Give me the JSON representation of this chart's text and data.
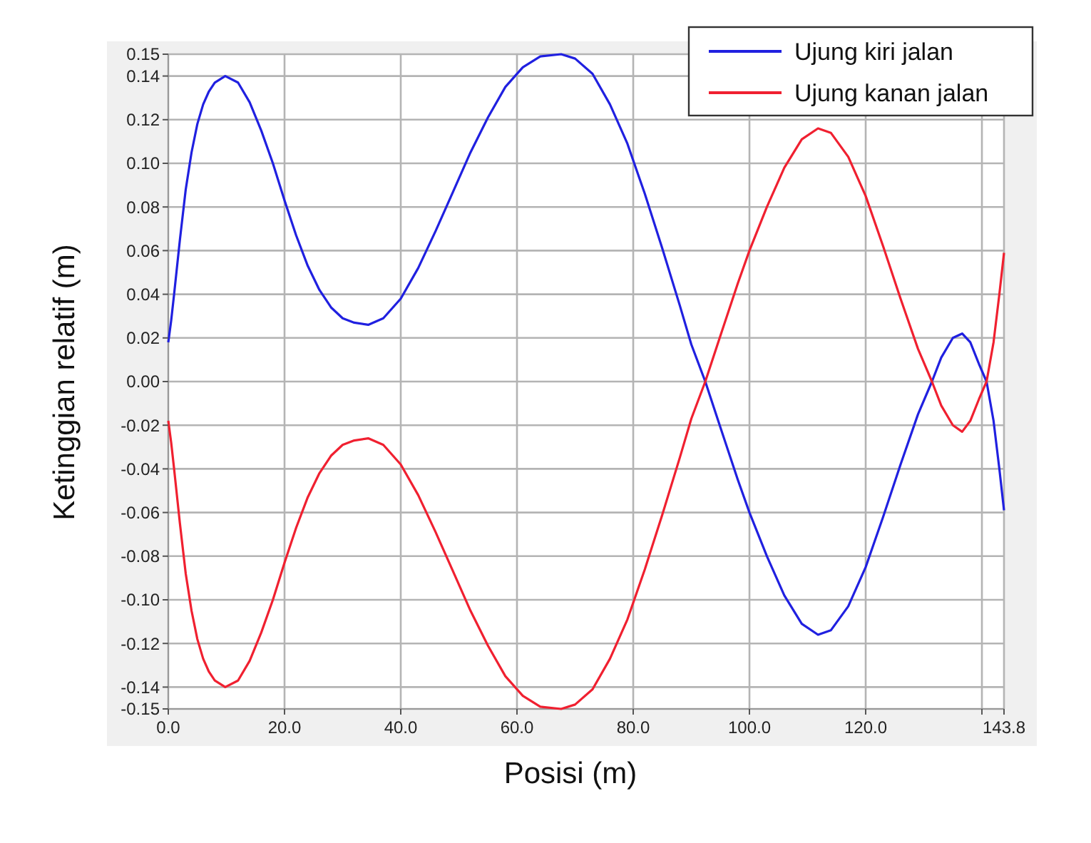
{
  "chart_data": {
    "type": "line",
    "xlabel": "Posisi (m)",
    "ylabel": "Ketinggian relatif (m)",
    "xlim": [
      0,
      143.8
    ],
    "ylim": [
      -0.15,
      0.15
    ],
    "xticks": [
      {
        "value": 0,
        "label": "0.0"
      },
      {
        "value": 20,
        "label": "20.0"
      },
      {
        "value": 40,
        "label": "40.0"
      },
      {
        "value": 60,
        "label": "60.0"
      },
      {
        "value": 80,
        "label": "80.0"
      },
      {
        "value": 100,
        "label": "100.0"
      },
      {
        "value": 120,
        "label": "120.0"
      },
      {
        "value": 140,
        "label": null
      },
      {
        "value": 143.8,
        "label": "143.8"
      }
    ],
    "yticks": [
      {
        "value": 0.15,
        "label": "0.15"
      },
      {
        "value": 0.14,
        "label": "0.14"
      },
      {
        "value": 0.12,
        "label": "0.12"
      },
      {
        "value": 0.1,
        "label": "0.10"
      },
      {
        "value": 0.08,
        "label": "0.08"
      },
      {
        "value": 0.06,
        "label": "0.06"
      },
      {
        "value": 0.04,
        "label": "0.04"
      },
      {
        "value": 0.02,
        "label": "0.02"
      },
      {
        "value": 0,
        "label": "0.00"
      },
      {
        "value": -0.02,
        "label": "-0.02"
      },
      {
        "value": -0.04,
        "label": "-0.04"
      },
      {
        "value": -0.06,
        "label": "-0.06"
      },
      {
        "value": -0.08,
        "label": "-0.08"
      },
      {
        "value": -0.1,
        "label": "-0.10"
      },
      {
        "value": -0.12,
        "label": "-0.12"
      },
      {
        "value": -0.14,
        "label": "-0.14"
      },
      {
        "value": -0.15,
        "label": "-0.15"
      }
    ],
    "grid": true,
    "legend": "top right",
    "marker": "none",
    "line_style": "solid",
    "x": [
      0,
      0.5,
      1,
      2,
      3,
      4,
      5,
      6,
      7,
      8,
      9.8,
      12,
      14,
      16,
      18,
      20,
      22,
      24,
      26,
      28,
      30,
      32,
      34.4,
      37,
      40,
      43,
      46,
      49,
      52,
      55,
      58,
      61,
      64,
      67.6,
      70,
      73,
      76,
      79,
      82,
      85,
      88,
      90,
      92.4,
      95,
      98,
      100,
      103,
      106,
      109,
      111.8,
      114,
      117,
      120,
      123,
      126,
      129,
      131.4,
      133,
      135,
      136.6,
      138,
      139.5,
      140.8,
      142,
      143,
      143.8
    ],
    "series": [
      {
        "name": "Ujung kiri jalan",
        "color": "#2020e0",
        "values": [
          0.018,
          0.028,
          0.04,
          0.065,
          0.088,
          0.105,
          0.118,
          0.127,
          0.133,
          0.137,
          0.14,
          0.137,
          0.128,
          0.115,
          0.1,
          0.083,
          0.067,
          0.053,
          0.042,
          0.034,
          0.029,
          0.027,
          0.026,
          0.029,
          0.038,
          0.052,
          0.069,
          0.087,
          0.105,
          0.121,
          0.135,
          0.144,
          0.149,
          0.15,
          0.148,
          0.141,
          0.127,
          0.109,
          0.086,
          0.061,
          0.035,
          0.017,
          0,
          -0.021,
          -0.045,
          -0.06,
          -0.08,
          -0.098,
          -0.111,
          -0.116,
          -0.114,
          -0.103,
          -0.085,
          -0.062,
          -0.038,
          -0.015,
          0,
          0.011,
          0.02,
          0.022,
          0.018,
          0.008,
          0,
          -0.018,
          -0.04,
          -0.059
        ]
      },
      {
        "name": "Ujung kanan jalan",
        "color": "#f02030",
        "values": [
          -0.018,
          -0.028,
          -0.04,
          -0.065,
          -0.088,
          -0.105,
          -0.118,
          -0.127,
          -0.133,
          -0.137,
          -0.14,
          -0.137,
          -0.128,
          -0.115,
          -0.1,
          -0.083,
          -0.067,
          -0.053,
          -0.042,
          -0.034,
          -0.029,
          -0.027,
          -0.026,
          -0.029,
          -0.038,
          -0.052,
          -0.069,
          -0.087,
          -0.105,
          -0.121,
          -0.135,
          -0.144,
          -0.149,
          -0.15,
          -0.148,
          -0.141,
          -0.127,
          -0.109,
          -0.086,
          -0.061,
          -0.035,
          -0.017,
          0,
          0.021,
          0.045,
          0.06,
          0.08,
          0.098,
          0.111,
          0.116,
          0.114,
          0.103,
          0.085,
          0.062,
          0.038,
          0.015,
          0,
          -0.011,
          -0.02,
          -0.023,
          -0.018,
          -0.008,
          0,
          0.018,
          0.04,
          0.059
        ]
      }
    ]
  }
}
